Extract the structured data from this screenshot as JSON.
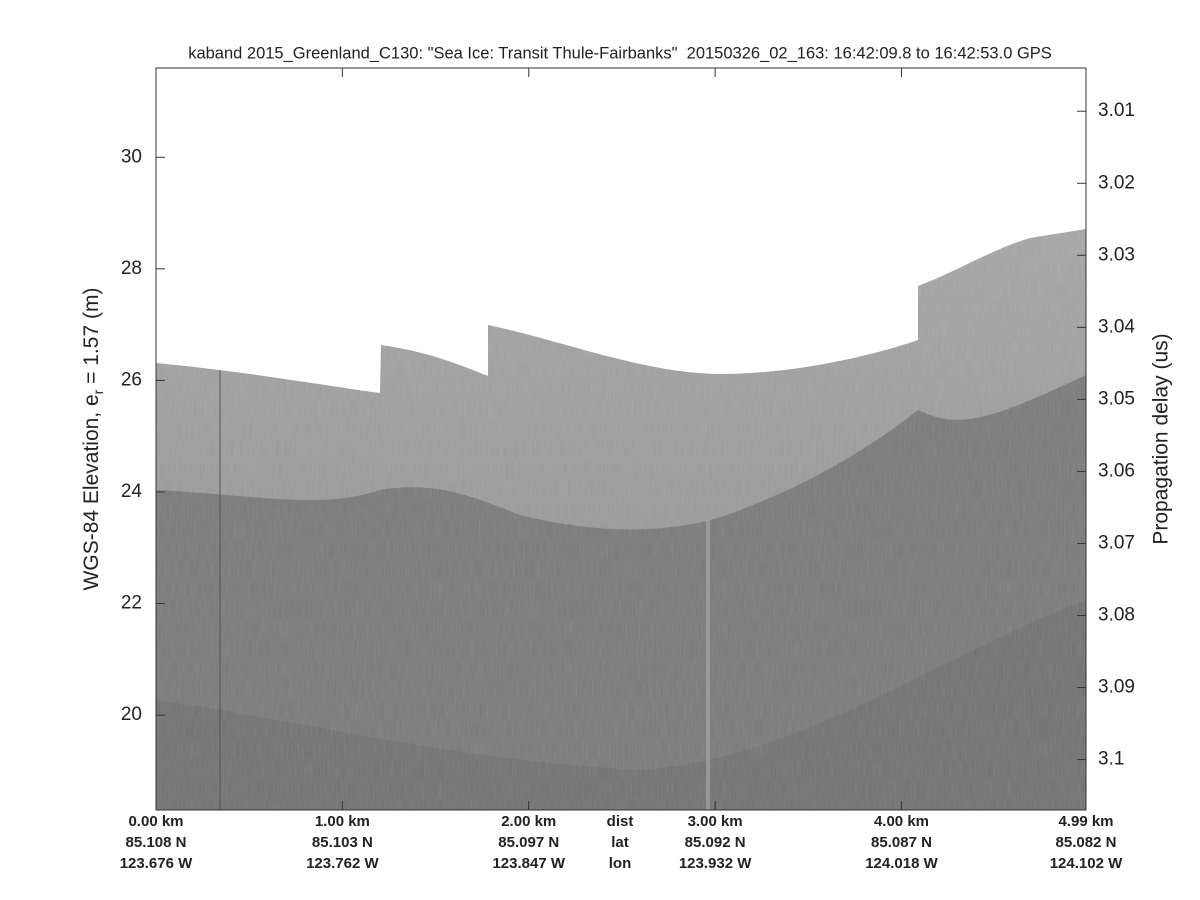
{
  "chart_data": {
    "type": "echogram",
    "title": "kaband 2015_Greenland_C130: \"Sea Ice: Transit Thule-Fairbanks\"  20150326_02_163: 16:42:09.8 to 16:42:53.0 GPS",
    "ylabel": "WGS-84 Elevation, e",
    "ylabel_sub": "r",
    "ylabel_end": " = 1.57 (m)",
    "y2label": "Propagation delay (us)",
    "ylim": [
      18.3,
      31.6
    ],
    "yticks": [
      20,
      22,
      24,
      26,
      28,
      30
    ],
    "y2lim": [
      3.004,
      3.107
    ],
    "y2_inverted": true,
    "y2ticks": [
      3.01,
      3.02,
      3.03,
      3.04,
      3.05,
      3.06,
      3.07,
      3.08,
      3.09,
      3.1
    ],
    "xlim": [
      0,
      4.99
    ],
    "xticks": [
      {
        "value": 0,
        "label": "0.00 km"
      },
      {
        "value": 1,
        "label": "1.00 km"
      },
      {
        "value": 2,
        "label": "2.00 km"
      },
      {
        "value": 3,
        "label": "3.00 km"
      },
      {
        "value": 4,
        "label": "4.00 km"
      },
      {
        "value": 4.99,
        "label": "4.99 km"
      }
    ],
    "lat_labels": [
      "85.108 N",
      "85.103 N",
      "85.097 N",
      "85.092 N",
      "85.087 N",
      "85.082 N"
    ],
    "lon_labels": [
      "123.676 W",
      "123.762 W",
      "123.847 W",
      "123.932 W",
      "124.018 W",
      "124.102 W"
    ],
    "row_names": [
      "dist",
      "lat",
      "lon"
    ]
  }
}
